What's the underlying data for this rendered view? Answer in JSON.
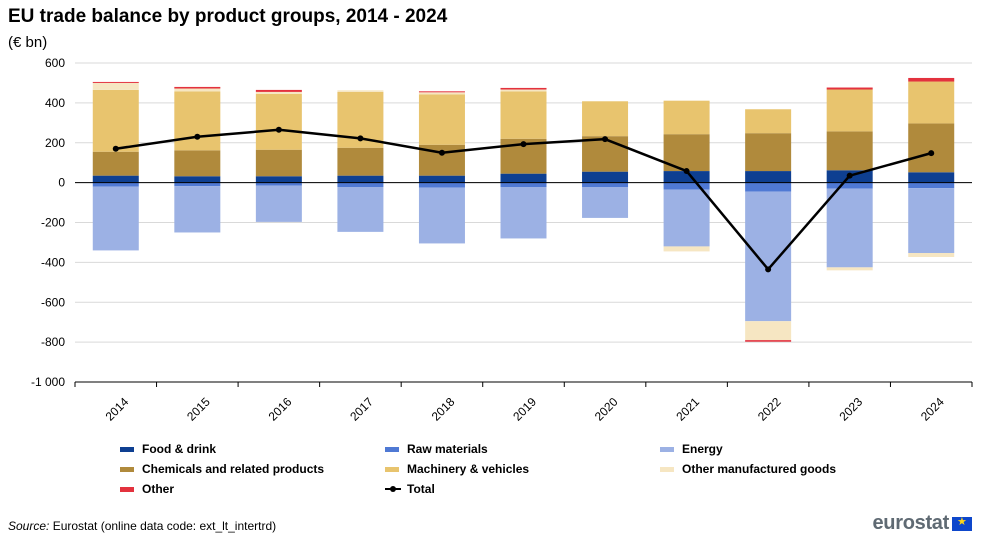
{
  "title": "EU trade balance by product groups, 2014 - 2024",
  "subtitle": "(€ bn)",
  "source": {
    "label": "Source:",
    "text": " Eurostat (online data code: ext_lt_intertrd)"
  },
  "logo": {
    "text": "eurostat",
    "flag_icon": "eu-flag-icon"
  },
  "chart_data": {
    "type": "bar",
    "stacked": true,
    "categories": [
      "2014",
      "2015",
      "2016",
      "2017",
      "2018",
      "2019",
      "2020",
      "2021",
      "2022",
      "2023",
      "2024"
    ],
    "ylim": [
      -1000,
      600
    ],
    "yticks": [
      600,
      400,
      200,
      0,
      -200,
      -400,
      -600,
      -800,
      -1000
    ],
    "ytick_labels": [
      "600",
      "400",
      "200",
      "0",
      "-200",
      "-400",
      "-600",
      "-800",
      "-1 000"
    ],
    "grid": true,
    "legend_position": "bottom",
    "series": [
      {
        "name": "Food & drink",
        "color": "#0e3f91",
        "values": [
          35,
          32,
          32,
          35,
          35,
          45,
          55,
          58,
          58,
          62,
          52
        ]
      },
      {
        "name": "Raw materials",
        "color": "#4f79d4",
        "values": [
          -20,
          -18,
          -15,
          -22,
          -25,
          -22,
          -22,
          -35,
          -45,
          -30,
          -28
        ]
      },
      {
        "name": "Energy",
        "color": "#9cb1e4",
        "values": [
          -320,
          -232,
          -182,
          -225,
          -280,
          -258,
          -155,
          -285,
          -650,
          -395,
          -325
        ]
      },
      {
        "name": "Chemicals and related products",
        "color": "#b08a3c",
        "values": [
          120,
          130,
          133,
          140,
          155,
          175,
          178,
          185,
          190,
          195,
          245
        ]
      },
      {
        "name": "Machinery & vehicles",
        "color": "#e8c46e",
        "values": [
          310,
          295,
          280,
          280,
          253,
          237,
          175,
          168,
          120,
          210,
          210
        ]
      },
      {
        "name": "Other manufactured goods",
        "color": "#f6e6c2",
        "values": [
          35,
          15,
          10,
          8,
          10,
          10,
          0,
          -25,
          -95,
          -15,
          -20
        ]
      },
      {
        "name": "Other",
        "color": "#e3323e",
        "values": [
          5,
          8,
          10,
          0,
          5,
          8,
          0,
          0,
          -8,
          10,
          18
        ]
      }
    ],
    "line": {
      "name": "Total",
      "color": "#000000",
      "values": [
        170,
        230,
        265,
        222,
        150,
        193,
        218,
        58,
        -435,
        35,
        148
      ]
    }
  }
}
